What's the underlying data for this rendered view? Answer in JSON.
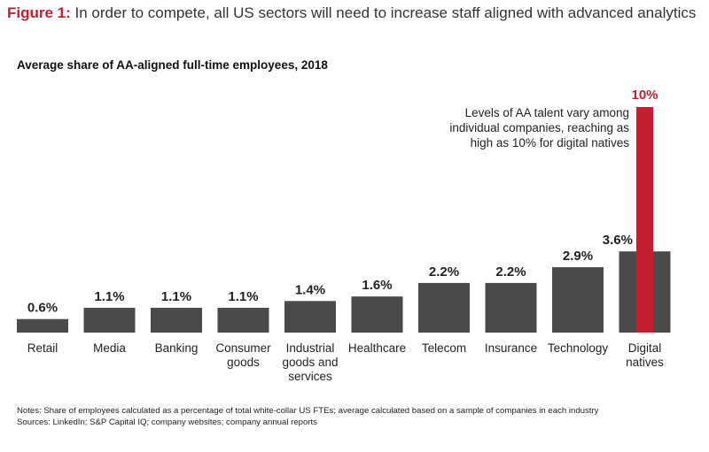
{
  "figure": {
    "label": "Figure 1:",
    "title": "In order to compete, all US sectors will need to increase staff aligned with advanced analytics"
  },
  "chart_data": {
    "type": "bar",
    "title": "Average share of AA-aligned full-time employees, 2018",
    "xlabel": "",
    "ylabel": "",
    "ylim": [
      0,
      10
    ],
    "grid": false,
    "legend": "none",
    "unit": "%",
    "categories": [
      [
        "Retail"
      ],
      [
        "Media"
      ],
      [
        "Banking"
      ],
      [
        "Consumer",
        "goods"
      ],
      [
        "Industrial",
        "goods and",
        "services"
      ],
      [
        "Healthcare"
      ],
      [
        "Telecom"
      ],
      [
        "Insurance"
      ],
      [
        "Technology"
      ],
      [
        "Digital",
        "natives"
      ]
    ],
    "values": [
      0.6,
      1.1,
      1.1,
      1.1,
      1.4,
      1.6,
      2.2,
      2.2,
      2.9,
      3.6
    ],
    "value_labels": [
      "0.6%",
      "1.1%",
      "1.1%",
      "1.1%",
      "1.4%",
      "1.6%",
      "2.2%",
      "2.2%",
      "2.9%",
      "3.6%"
    ],
    "highlight": {
      "category_index": 9,
      "value": 10,
      "label": "10%",
      "annotation": [
        "Levels of AA talent vary among",
        "individual companies, reaching as",
        "high as 10% for digital natives"
      ]
    },
    "colors": {
      "bar": "#4a4a4a",
      "highlight": "#c0202f",
      "text": "#222222"
    }
  },
  "notes": {
    "line1": "Notes: Share of employees calculated as a percentage of total white-collar US FTEs; average calculated based on a sample of companies in each industry",
    "line2": "Sources: LinkedIn; S&P Capital IQ; company websites; company annual reports"
  }
}
